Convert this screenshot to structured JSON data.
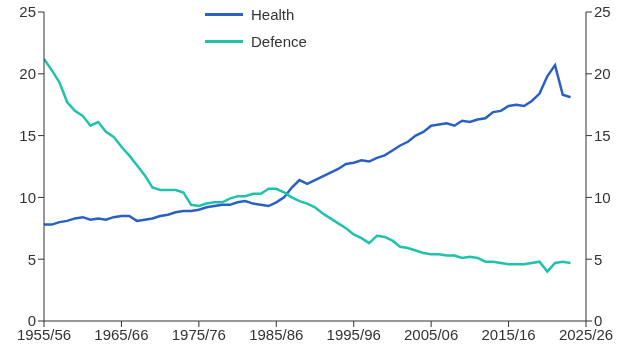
{
  "chart_data": {
    "type": "line",
    "x": [
      1955,
      1956,
      1957,
      1958,
      1959,
      1960,
      1961,
      1962,
      1963,
      1964,
      1965,
      1966,
      1967,
      1968,
      1969,
      1970,
      1971,
      1972,
      1973,
      1974,
      1975,
      1976,
      1977,
      1978,
      1979,
      1980,
      1981,
      1982,
      1983,
      1984,
      1985,
      1986,
      1987,
      1988,
      1989,
      1990,
      1991,
      1992,
      1993,
      1994,
      1995,
      1996,
      1997,
      1998,
      1999,
      2000,
      2001,
      2002,
      2003,
      2004,
      2005,
      2006,
      2007,
      2008,
      2009,
      2010,
      2011,
      2012,
      2013,
      2014,
      2015,
      2016,
      2017,
      2018,
      2019,
      2020,
      2021,
      2022,
      2023
    ],
    "series": [
      {
        "name": "Health",
        "color": "#2a5fc4",
        "values": [
          7.8,
          7.8,
          8.0,
          8.1,
          8.3,
          8.4,
          8.2,
          8.3,
          8.2,
          8.4,
          8.5,
          8.5,
          8.1,
          8.2,
          8.3,
          8.5,
          8.6,
          8.8,
          8.9,
          8.9,
          9.0,
          9.2,
          9.3,
          9.4,
          9.4,
          9.6,
          9.7,
          9.5,
          9.4,
          9.3,
          9.6,
          10.0,
          10.8,
          11.4,
          11.1,
          11.4,
          11.7,
          12.0,
          12.3,
          12.7,
          12.8,
          13.0,
          12.9,
          13.2,
          13.4,
          13.8,
          14.2,
          14.5,
          15.0,
          15.3,
          15.8,
          15.9,
          16.0,
          15.8,
          16.2,
          16.1,
          16.3,
          16.4,
          16.9,
          17.0,
          17.4,
          17.5,
          17.4,
          17.8,
          18.4,
          19.8,
          20.7,
          18.3,
          18.1
        ]
      },
      {
        "name": "Defence",
        "color": "#1fc2aa",
        "values": [
          21.2,
          20.3,
          19.3,
          17.7,
          17.0,
          16.6,
          15.8,
          16.1,
          15.3,
          14.9,
          14.1,
          13.4,
          12.6,
          11.8,
          10.8,
          10.6,
          10.6,
          10.6,
          10.4,
          9.4,
          9.3,
          9.5,
          9.6,
          9.6,
          9.9,
          10.1,
          10.1,
          10.3,
          10.3,
          10.7,
          10.7,
          10.4,
          10.0,
          9.7,
          9.5,
          9.2,
          8.7,
          8.3,
          7.9,
          7.5,
          7.0,
          6.7,
          6.3,
          6.9,
          6.8,
          6.5,
          6.0,
          5.9,
          5.7,
          5.5,
          5.4,
          5.4,
          5.3,
          5.3,
          5.1,
          5.2,
          5.1,
          4.8,
          4.8,
          4.7,
          4.6,
          4.6,
          4.6,
          4.7,
          4.8,
          4.0,
          4.7,
          4.8,
          4.7
        ]
      }
    ],
    "xlim": [
      1955,
      2025
    ],
    "xticks": [
      {
        "value": 1955,
        "label": "1955/56"
      },
      {
        "value": 1965,
        "label": "1965/66"
      },
      {
        "value": 1975,
        "label": "1975/76"
      },
      {
        "value": 1985,
        "label": "1985/86"
      },
      {
        "value": 1995,
        "label": "1995/96"
      },
      {
        "value": 2005,
        "label": "2005/06"
      },
      {
        "value": 2015,
        "label": "2015/16"
      },
      {
        "value": 2025,
        "label": "2025/26"
      }
    ],
    "ylim": [
      0,
      25
    ],
    "yticks": [
      0,
      5,
      10,
      15,
      20,
      25
    ],
    "y2lim": [
      0,
      25
    ],
    "y2ticks": [
      0,
      5,
      10,
      15,
      20,
      25
    ],
    "grid": false,
    "legend": "top"
  }
}
